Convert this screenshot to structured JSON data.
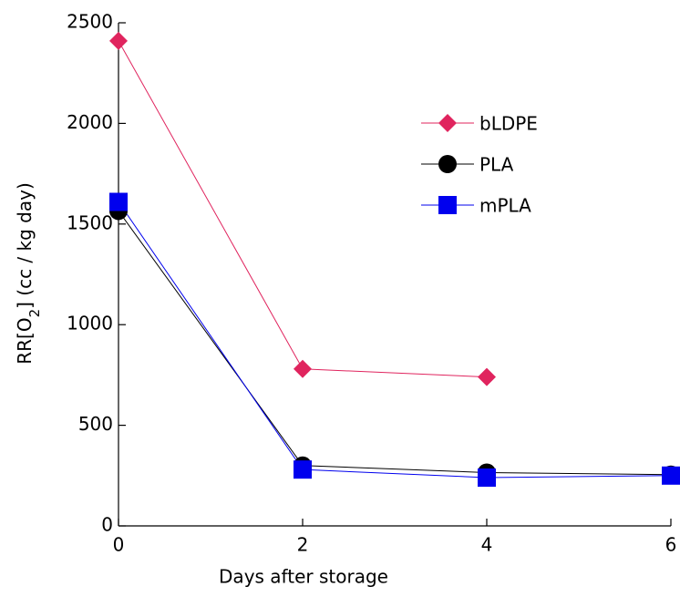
{
  "chart_data": {
    "type": "line",
    "xlabel": "Days after storage",
    "ylabel": [
      "RR[O",
      "2",
      "] (cc / kg day)"
    ],
    "x": [
      0,
      2,
      4,
      6
    ],
    "series": [
      {
        "name": "bLDPE",
        "color": "#e0245e",
        "marker": "diamond",
        "values": [
          2410,
          780,
          740,
          null
        ]
      },
      {
        "name": "PLA",
        "color": "#000000",
        "marker": "circle",
        "values": [
          1565,
          300,
          265,
          255
        ]
      },
      {
        "name": "mPLA",
        "color": "#0000ee",
        "marker": "square",
        "values": [
          1610,
          280,
          240,
          250
        ]
      }
    ],
    "xlim": [
      0,
      6
    ],
    "xticks": [
      0,
      2,
      4,
      6
    ],
    "ylim": [
      0,
      2500
    ],
    "yticks": [
      0,
      500,
      1000,
      1500,
      2000,
      2500
    ],
    "legend": "upper right"
  }
}
